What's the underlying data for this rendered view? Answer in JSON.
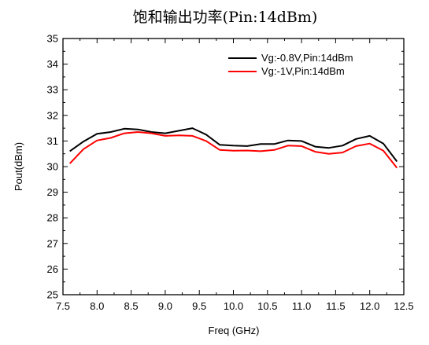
{
  "chart_data": {
    "type": "line",
    "title": "饱和输出功率(Pin:14dBm)",
    "xlabel": "Freq (GHz)",
    "ylabel": "Pout(dBm)",
    "xlim": [
      7.5,
      12.5
    ],
    "ylim": [
      25,
      35
    ],
    "x_ticks": [
      "7.5",
      "8.0",
      "8.5",
      "9.0",
      "9.5",
      "10.0",
      "10.5",
      "11.0",
      "11.5",
      "12.0",
      "12.5"
    ],
    "y_ticks": [
      "25",
      "26",
      "27",
      "28",
      "29",
      "30",
      "31",
      "32",
      "33",
      "34",
      "35"
    ],
    "grid": false,
    "legend_position": "top-right",
    "x": [
      7.6,
      7.8,
      8.0,
      8.2,
      8.4,
      8.6,
      8.8,
      9.0,
      9.2,
      9.4,
      9.6,
      9.8,
      10.0,
      10.2,
      10.4,
      10.6,
      10.8,
      11.0,
      11.2,
      11.4,
      11.6,
      11.8,
      12.0,
      12.2,
      12.4
    ],
    "series": [
      {
        "name": "Vg:-0.8V,Pin:14dBm",
        "color": "#000000",
        "values": [
          30.6,
          30.98,
          31.28,
          31.35,
          31.48,
          31.45,
          31.35,
          31.3,
          31.4,
          31.5,
          31.25,
          30.85,
          30.82,
          30.8,
          30.88,
          30.88,
          31.02,
          31.0,
          30.78,
          30.73,
          30.82,
          31.08,
          31.2,
          30.9,
          30.2
        ]
      },
      {
        "name": "Vg:-1V,Pin:14dBm",
        "color": "#ff0000",
        "values": [
          30.12,
          30.68,
          31.02,
          31.12,
          31.3,
          31.35,
          31.3,
          31.2,
          31.22,
          31.2,
          31.0,
          30.65,
          30.62,
          30.63,
          30.6,
          30.65,
          30.82,
          30.8,
          30.58,
          30.5,
          30.55,
          30.8,
          30.9,
          30.62,
          29.95
        ]
      }
    ]
  }
}
